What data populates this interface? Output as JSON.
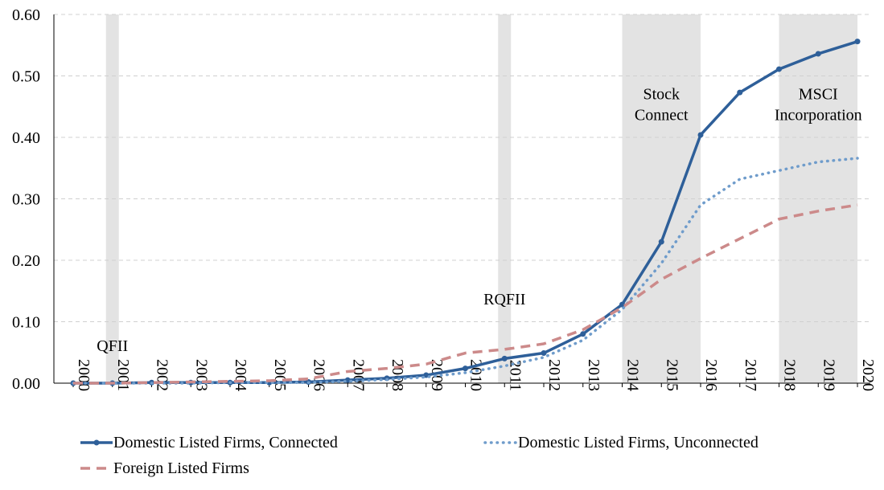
{
  "chart_data": {
    "type": "line",
    "x": [
      "2000",
      "2001",
      "2002",
      "2003",
      "2004",
      "2005",
      "2006",
      "2007",
      "2008",
      "2009",
      "2010",
      "2011",
      "2012",
      "2013",
      "2014",
      "2015",
      "2016",
      "2017",
      "2018",
      "2019",
      "2020"
    ],
    "ylim": [
      0,
      0.6
    ],
    "yticks": [
      "0.00",
      "0.10",
      "0.20",
      "0.30",
      "0.40",
      "0.50",
      "0.60"
    ],
    "grid": true,
    "legend_position": "bottom",
    "series": [
      {
        "name": "Domestic Listed Firms, Connected",
        "style": "solid-with-markers",
        "color": "#2e5f99",
        "values": [
          0.0,
          0.0,
          0.001,
          0.001,
          0.001,
          0.001,
          0.002,
          0.005,
          0.008,
          0.013,
          0.024,
          0.04,
          0.049,
          0.08,
          0.128,
          0.23,
          0.404,
          0.473,
          0.511,
          0.536,
          0.556
        ]
      },
      {
        "name": "Domestic Listed Firms, Unconnected",
        "style": "dotted",
        "color": "#6f9ccb",
        "values": [
          0.0,
          0.0,
          0.0,
          0.0,
          0.001,
          0.001,
          0.001,
          0.003,
          0.006,
          0.01,
          0.017,
          0.028,
          0.042,
          0.07,
          0.12,
          0.195,
          0.29,
          0.332,
          0.346,
          0.36,
          0.366
        ]
      },
      {
        "name": "Foreign Listed Firms",
        "style": "dashed",
        "color": "#cc8a8a",
        "values": [
          0.0,
          0.0,
          0.001,
          0.002,
          0.003,
          0.004,
          0.007,
          0.019,
          0.024,
          0.031,
          0.049,
          0.055,
          0.064,
          0.087,
          0.123,
          0.169,
          0.203,
          0.235,
          0.267,
          0.28,
          0.29
        ]
      }
    ],
    "shaded_periods": [
      {
        "from": "2001",
        "to": "2001",
        "label": "QFII"
      },
      {
        "from": "2011",
        "to": "2011",
        "label": "RQFII"
      },
      {
        "from": "2014",
        "to": "2016",
        "label": "Stock Connect"
      },
      {
        "from": "2018",
        "to": "2020",
        "label": "MSCI Incorporation"
      }
    ],
    "annotations": [
      {
        "text": "QFII",
        "x": "2001",
        "y": 0.052
      },
      {
        "text": "RQFII",
        "x": "2011",
        "y": 0.128
      },
      {
        "text": "Stock",
        "x": "2015",
        "y": 0.462
      },
      {
        "text": "Connect",
        "x": "2015",
        "y": 0.428
      },
      {
        "text": "MSCI",
        "x": "2019",
        "y": 0.462
      },
      {
        "text": "Incorporation",
        "x": "2019",
        "y": 0.428
      }
    ]
  }
}
